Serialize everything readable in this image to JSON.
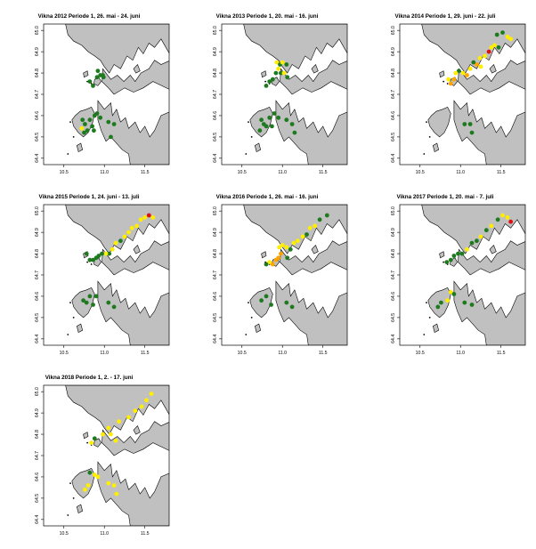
{
  "colors": {
    "land": "#c0c0c0",
    "sea": "#ffffff",
    "coast": "#000000",
    "green": "#1e7a1e",
    "yellow": "#ffee00",
    "orange": "#ffa500",
    "red": "#e01010"
  },
  "axes": {
    "x_ticks": [
      {
        "value": 10.5,
        "label": "10.5"
      },
      {
        "value": 11.0,
        "label": "11.0"
      },
      {
        "value": 11.5,
        "label": "11.5"
      }
    ],
    "y_ticks": [
      {
        "value": 64.4,
        "label": "64.4"
      },
      {
        "value": 64.5,
        "label": "64.5"
      },
      {
        "value": 64.6,
        "label": "64.6"
      },
      {
        "value": 64.7,
        "label": "64.7"
      },
      {
        "value": 64.8,
        "label": "64.8"
      },
      {
        "value": 64.9,
        "label": "64.9"
      },
      {
        "value": 65.0,
        "label": "65.0"
      }
    ],
    "xlim": [
      10.25,
      11.8
    ],
    "ylim": [
      64.37,
      65.03
    ]
  },
  "panels": [
    {
      "title": "Vikna 2012 Periode 1, 26. mai - 24. juni",
      "points": [
        [
          10.92,
          64.81,
          "green"
        ],
        [
          10.95,
          64.79,
          "green"
        ],
        [
          10.98,
          64.79,
          "green"
        ],
        [
          10.91,
          64.78,
          "green"
        ],
        [
          10.99,
          64.78,
          "green"
        ],
        [
          10.82,
          64.76,
          "green"
        ],
        [
          10.86,
          64.74,
          "green"
        ],
        [
          10.73,
          64.58,
          "green"
        ],
        [
          10.76,
          64.56,
          "green"
        ],
        [
          10.72,
          64.54,
          "yellow"
        ],
        [
          10.75,
          64.52,
          "green"
        ],
        [
          10.79,
          64.53,
          "green"
        ],
        [
          10.82,
          64.58,
          "green"
        ],
        [
          10.85,
          64.55,
          "green"
        ],
        [
          10.88,
          64.6,
          "green"
        ],
        [
          10.91,
          64.61,
          "green"
        ],
        [
          10.95,
          64.59,
          "green"
        ],
        [
          10.87,
          64.53,
          "green"
        ],
        [
          11.05,
          64.57,
          "green"
        ],
        [
          11.12,
          64.56,
          "green"
        ],
        [
          11.08,
          64.5,
          "green"
        ]
      ]
    },
    {
      "title": "Vikna 2013 Periode 1, 20. mai - 16. juni",
      "points": [
        [
          10.93,
          64.85,
          "yellow"
        ],
        [
          10.97,
          64.84,
          "green"
        ],
        [
          11.0,
          64.85,
          "yellow"
        ],
        [
          11.05,
          64.84,
          "green"
        ],
        [
          10.95,
          64.82,
          "yellow"
        ],
        [
          10.92,
          64.8,
          "green"
        ],
        [
          10.98,
          64.8,
          "green"
        ],
        [
          11.02,
          64.8,
          "yellow"
        ],
        [
          11.06,
          64.78,
          "green"
        ],
        [
          10.88,
          64.77,
          "green"
        ],
        [
          10.84,
          64.76,
          "green"
        ],
        [
          10.8,
          64.74,
          "green"
        ],
        [
          10.74,
          64.58,
          "green"
        ],
        [
          10.77,
          64.56,
          "green"
        ],
        [
          10.72,
          64.53,
          "green"
        ],
        [
          10.8,
          64.55,
          "green"
        ],
        [
          10.84,
          64.59,
          "green"
        ],
        [
          10.87,
          64.55,
          "green"
        ],
        [
          10.9,
          64.61,
          "green"
        ],
        [
          10.95,
          64.59,
          "green"
        ],
        [
          11.05,
          64.58,
          "green"
        ],
        [
          11.12,
          64.56,
          "green"
        ],
        [
          11.15,
          64.52,
          "green"
        ]
      ]
    },
    {
      "title": "Vikna 2014 Periode 1, 29. juni - 22. juli",
      "points": [
        [
          11.45,
          64.98,
          "green"
        ],
        [
          11.52,
          64.99,
          "green"
        ],
        [
          11.58,
          64.97,
          "yellow"
        ],
        [
          11.62,
          64.96,
          "yellow"
        ],
        [
          11.38,
          64.92,
          "yellow"
        ],
        [
          11.42,
          64.93,
          "yellow"
        ],
        [
          11.47,
          64.92,
          "green"
        ],
        [
          11.35,
          64.9,
          "red"
        ],
        [
          11.3,
          64.88,
          "yellow"
        ],
        [
          11.24,
          64.87,
          "yellow"
        ],
        [
          11.2,
          64.84,
          "orange"
        ],
        [
          11.25,
          64.83,
          "yellow"
        ],
        [
          11.12,
          64.82,
          "yellow"
        ],
        [
          11.08,
          64.79,
          "orange"
        ],
        [
          11.03,
          64.8,
          "yellow"
        ],
        [
          10.98,
          64.81,
          "green"
        ],
        [
          10.94,
          64.8,
          "yellow"
        ],
        [
          10.92,
          64.77,
          "orange"
        ],
        [
          10.88,
          64.75,
          "orange"
        ],
        [
          10.85,
          64.77,
          "yellow"
        ],
        [
          11.16,
          64.85,
          "green"
        ],
        [
          11.05,
          64.56,
          "green"
        ],
        [
          11.12,
          64.56,
          "green"
        ],
        [
          11.14,
          64.52,
          "green"
        ]
      ]
    },
    {
      "title": "Vikna 2015 Periode 1, 24. juni - 13. juli",
      "points": [
        [
          11.5,
          64.97,
          "yellow"
        ],
        [
          11.55,
          64.98,
          "red"
        ],
        [
          11.6,
          64.97,
          "yellow"
        ],
        [
          11.45,
          64.96,
          "yellow"
        ],
        [
          11.4,
          64.93,
          "yellow"
        ],
        [
          11.34,
          64.92,
          "yellow"
        ],
        [
          11.3,
          64.9,
          "yellow"
        ],
        [
          11.25,
          64.88,
          "yellow"
        ],
        [
          11.2,
          64.86,
          "green"
        ],
        [
          11.14,
          64.85,
          "yellow"
        ],
        [
          11.1,
          64.82,
          "yellow"
        ],
        [
          11.06,
          64.8,
          "green"
        ],
        [
          11.02,
          64.8,
          "yellow"
        ],
        [
          10.97,
          64.8,
          "green"
        ],
        [
          10.93,
          64.79,
          "green"
        ],
        [
          10.9,
          64.78,
          "green"
        ],
        [
          10.86,
          64.77,
          "green"
        ],
        [
          10.82,
          64.77,
          "green"
        ],
        [
          10.78,
          64.8,
          "green"
        ],
        [
          10.74,
          64.58,
          "green"
        ],
        [
          10.78,
          64.57,
          "green"
        ],
        [
          10.82,
          64.6,
          "green"
        ],
        [
          10.86,
          64.56,
          "green"
        ],
        [
          10.9,
          64.6,
          "green"
        ],
        [
          11.05,
          64.57,
          "green"
        ],
        [
          11.12,
          64.55,
          "green"
        ]
      ]
    },
    {
      "title": "Vikna 2016 Periode 1, 26. mai - 16. juni",
      "points": [
        [
          11.55,
          64.98,
          "green"
        ],
        [
          11.46,
          64.96,
          "green"
        ],
        [
          11.4,
          64.93,
          "yellow"
        ],
        [
          11.34,
          64.92,
          "yellow"
        ],
        [
          11.3,
          64.89,
          "green"
        ],
        [
          11.25,
          64.88,
          "yellow"
        ],
        [
          11.19,
          64.86,
          "yellow"
        ],
        [
          11.14,
          64.85,
          "yellow"
        ],
        [
          11.1,
          64.82,
          "green"
        ],
        [
          11.05,
          64.83,
          "yellow"
        ],
        [
          11.0,
          64.84,
          "yellow"
        ],
        [
          10.96,
          64.83,
          "yellow"
        ],
        [
          10.98,
          64.8,
          "orange"
        ],
        [
          10.95,
          64.78,
          "orange"
        ],
        [
          10.92,
          64.77,
          "orange"
        ],
        [
          10.88,
          64.75,
          "orange"
        ],
        [
          10.84,
          64.76,
          "yellow"
        ],
        [
          10.8,
          64.75,
          "green"
        ],
        [
          11.06,
          64.78,
          "green"
        ],
        [
          10.74,
          64.58,
          "green"
        ],
        [
          10.8,
          64.6,
          "green"
        ],
        [
          10.86,
          64.56,
          "green"
        ],
        [
          11.05,
          64.57,
          "green"
        ],
        [
          11.12,
          64.55,
          "green"
        ]
      ]
    },
    {
      "title": "Vikna 2017 Periode 1, 20. mai - 7. juli",
      "points": [
        [
          11.52,
          64.98,
          "yellow"
        ],
        [
          11.58,
          64.97,
          "yellow"
        ],
        [
          11.62,
          64.95,
          "red"
        ],
        [
          11.46,
          64.96,
          "green"
        ],
        [
          11.38,
          64.93,
          "yellow"
        ],
        [
          11.32,
          64.91,
          "green"
        ],
        [
          11.25,
          64.88,
          "yellow"
        ],
        [
          11.2,
          64.86,
          "green"
        ],
        [
          11.14,
          64.85,
          "green"
        ],
        [
          11.08,
          64.82,
          "yellow"
        ],
        [
          11.02,
          64.8,
          "green"
        ],
        [
          10.97,
          64.8,
          "green"
        ],
        [
          10.92,
          64.79,
          "green"
        ],
        [
          10.88,
          64.77,
          "green"
        ],
        [
          10.83,
          64.76,
          "green"
        ],
        [
          10.88,
          64.62,
          "yellow"
        ],
        [
          10.92,
          64.61,
          "green"
        ],
        [
          10.84,
          64.58,
          "yellow"
        ],
        [
          10.76,
          64.57,
          "green"
        ],
        [
          10.72,
          64.55,
          "green"
        ],
        [
          11.05,
          64.57,
          "green"
        ],
        [
          11.14,
          64.56,
          "green"
        ]
      ]
    },
    {
      "title": "Vikna 2018 Periode 1, 2. - 17. juni",
      "points": [
        [
          11.58,
          64.99,
          "yellow"
        ],
        [
          11.52,
          64.96,
          "yellow"
        ],
        [
          11.46,
          64.93,
          "yellow"
        ],
        [
          11.38,
          64.91,
          "yellow"
        ],
        [
          11.3,
          64.88,
          "yellow"
        ],
        [
          11.18,
          64.86,
          "yellow"
        ],
        [
          11.05,
          64.83,
          "yellow"
        ],
        [
          10.98,
          64.8,
          "yellow"
        ],
        [
          10.88,
          64.78,
          "green"
        ],
        [
          10.84,
          64.76,
          "yellow"
        ],
        [
          11.08,
          64.8,
          "yellow"
        ],
        [
          11.14,
          64.77,
          "yellow"
        ],
        [
          10.82,
          64.62,
          "green"
        ],
        [
          10.88,
          64.61,
          "yellow"
        ],
        [
          10.92,
          64.6,
          "yellow"
        ],
        [
          10.8,
          64.56,
          "yellow"
        ],
        [
          10.76,
          64.54,
          "yellow"
        ],
        [
          11.05,
          64.57,
          "yellow"
        ],
        [
          11.12,
          64.56,
          "yellow"
        ],
        [
          11.15,
          64.52,
          "yellow"
        ]
      ]
    }
  ]
}
